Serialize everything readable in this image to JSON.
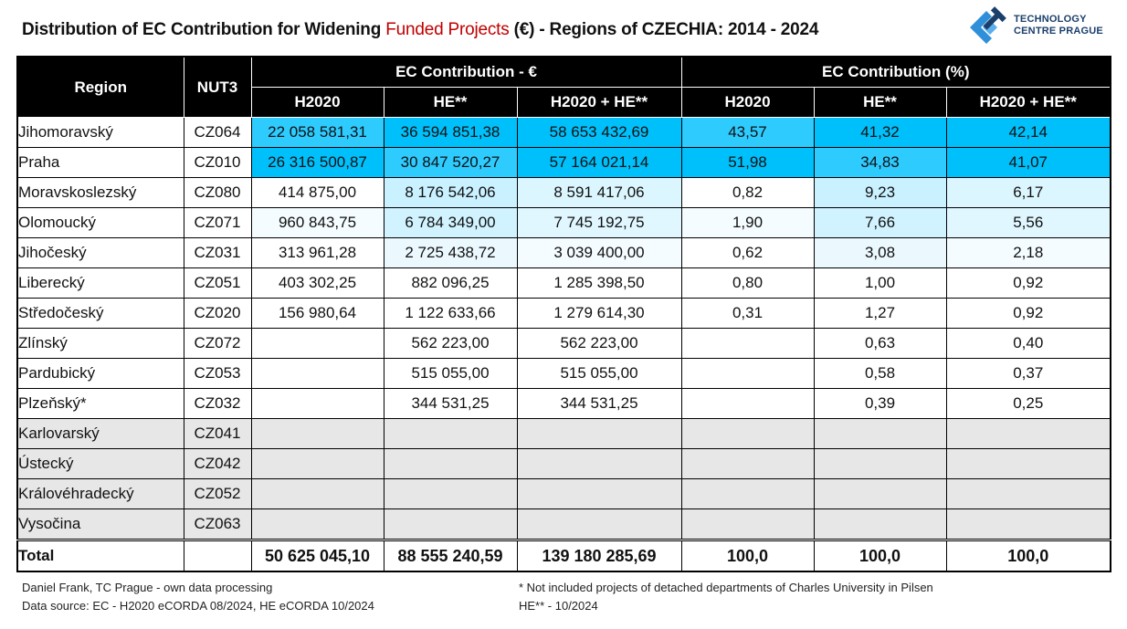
{
  "title": {
    "part1": "Distribution of EC Contribution for Widening ",
    "highlight": "Funded Projects",
    "part2": " (€) - Regions of CZECHIA: 2014 - 2024",
    "highlight_color": "#c00000"
  },
  "logo": {
    "icon": "tc-prague-logo-icon",
    "line1": "TECHNOLOGY",
    "line2": "CENTRE PRAGUE"
  },
  "table": {
    "headers": {
      "region": "Region",
      "nut3": "NUT3",
      "group_eur": "EC Contribution - €",
      "group_pct": "EC Contribution (%)",
      "sub": [
        "H2020",
        "HE**",
        "H2020 + HE**",
        "H2020",
        "HE**",
        "H2020 + HE**"
      ]
    },
    "rows": [
      {
        "region": "Jihomoravský",
        "nut3": "CZ064",
        "h2020": "22 058 581,31",
        "he": "36 594 851,38",
        "sum": "58 653 432,69",
        "p_h2020": "43,57",
        "p_he": "41,32",
        "p_sum": "42,14",
        "bg": [
          "#2ecbff",
          "#00c0fb",
          "#00c0fb",
          "#2ecbff",
          "#00c0fb",
          "#00c0fb"
        ]
      },
      {
        "region": "Praha",
        "nut3": "CZ010",
        "h2020": "26 316 500,87",
        "he": "30 847 520,27",
        "sum": "57 164 021,14",
        "p_h2020": "51,98",
        "p_he": "34,83",
        "p_sum": "41,07",
        "bg": [
          "#00c0fb",
          "#2ecbff",
          "#00c0fb",
          "#00c0fb",
          "#2ecbff",
          "#00c0fb"
        ]
      },
      {
        "region": "Moravskoslezský",
        "nut3": "CZ080",
        "h2020": "414 875,00",
        "he": "8 176 542,06",
        "sum": "8 591 417,06",
        "p_h2020": "0,82",
        "p_he": "9,23",
        "p_sum": "6,17",
        "bg": [
          "#ffffff",
          "#c9f1ff",
          "#dcf6ff",
          "#ffffff",
          "#c9f1ff",
          "#dcf6ff"
        ]
      },
      {
        "region": "Olomoucký",
        "nut3": "CZ071",
        "h2020": "960 843,75",
        "he": "6 784 349,00",
        "sum": "7 745 192,75",
        "p_h2020": "1,90",
        "p_he": "7,66",
        "p_sum": "5,56",
        "bg": [
          "#f4fcff",
          "#d0f3ff",
          "#e0f7ff",
          "#f4fcff",
          "#d0f3ff",
          "#e0f7ff"
        ]
      },
      {
        "region": "Jihočeský",
        "nut3": "CZ031",
        "h2020": "313 961,28",
        "he": "2 725 438,72",
        "sum": "3 039 400,00",
        "p_h2020": "0,62",
        "p_he": "3,08",
        "p_sum": "2,18",
        "bg": [
          "#ffffff",
          "#ebf9ff",
          "#f4fcff",
          "#ffffff",
          "#ebf9ff",
          "#f4fcff"
        ]
      },
      {
        "region": "Liberecký",
        "nut3": "CZ051",
        "h2020": "403 302,25",
        "he": "882 096,25",
        "sum": "1 285 398,50",
        "p_h2020": "0,80",
        "p_he": "1,00",
        "p_sum": "0,92",
        "bg": [
          "#ffffff",
          "#ffffff",
          "#ffffff",
          "#ffffff",
          "#ffffff",
          "#ffffff"
        ]
      },
      {
        "region": "Středočeský",
        "nut3": "CZ020",
        "h2020": "156 980,64",
        "he": "1 122 633,66",
        "sum": "1 279 614,30",
        "p_h2020": "0,31",
        "p_he": "1,27",
        "p_sum": "0,92",
        "bg": [
          "#ffffff",
          "#ffffff",
          "#ffffff",
          "#ffffff",
          "#ffffff",
          "#ffffff"
        ]
      },
      {
        "region": "Zlínský",
        "nut3": "CZ072",
        "h2020": "",
        "he": "562 223,00",
        "sum": "562 223,00",
        "p_h2020": "",
        "p_he": "0,63",
        "p_sum": "0,40",
        "bg": [
          "#ffffff",
          "#ffffff",
          "#ffffff",
          "#ffffff",
          "#ffffff",
          "#ffffff"
        ]
      },
      {
        "region": "Pardubický",
        "nut3": "CZ053",
        "h2020": "",
        "he": "515 055,00",
        "sum": "515 055,00",
        "p_h2020": "",
        "p_he": "0,58",
        "p_sum": "0,37",
        "bg": [
          "#ffffff",
          "#ffffff",
          "#ffffff",
          "#ffffff",
          "#ffffff",
          "#ffffff"
        ]
      },
      {
        "region": "Plzeňský*",
        "nut3": "CZ032",
        "h2020": "",
        "he": "344 531,25",
        "sum": "344 531,25",
        "p_h2020": "",
        "p_he": "0,39",
        "p_sum": "0,25",
        "bg": [
          "#ffffff",
          "#ffffff",
          "#ffffff",
          "#ffffff",
          "#ffffff",
          "#ffffff"
        ]
      },
      {
        "region": "Karlovarský",
        "nut3": "CZ041",
        "h2020": "",
        "he": "",
        "sum": "",
        "p_h2020": "",
        "p_he": "",
        "p_sum": "",
        "empty": true
      },
      {
        "region": "Ústecký",
        "nut3": "CZ042",
        "h2020": "",
        "he": "",
        "sum": "",
        "p_h2020": "",
        "p_he": "",
        "p_sum": "",
        "empty": true
      },
      {
        "region": "Královéhradecký",
        "nut3": "CZ052",
        "h2020": "",
        "he": "",
        "sum": "",
        "p_h2020": "",
        "p_he": "",
        "p_sum": "",
        "empty": true
      },
      {
        "region": "Vysočina",
        "nut3": "CZ063",
        "h2020": "",
        "he": "",
        "sum": "",
        "p_h2020": "",
        "p_he": "",
        "p_sum": "",
        "empty": true
      }
    ],
    "total": {
      "label": "Total",
      "nut3": "",
      "h2020": "50 625 045,10",
      "he": "88 555 240,59",
      "sum": "139 180 285,69",
      "p_h2020": "100,0",
      "p_he": "100,0",
      "p_sum": "100,0"
    }
  },
  "footer": {
    "author": "Daniel Frank, TC Prague - own data processing",
    "source": "Data source: EC - H2020 eCORDA 08/2024, HE eCORDA 10/2024",
    "note1": "* Not included projects of detached departments of Charles University in Pilsen",
    "note2": "HE** - 10/2024"
  }
}
